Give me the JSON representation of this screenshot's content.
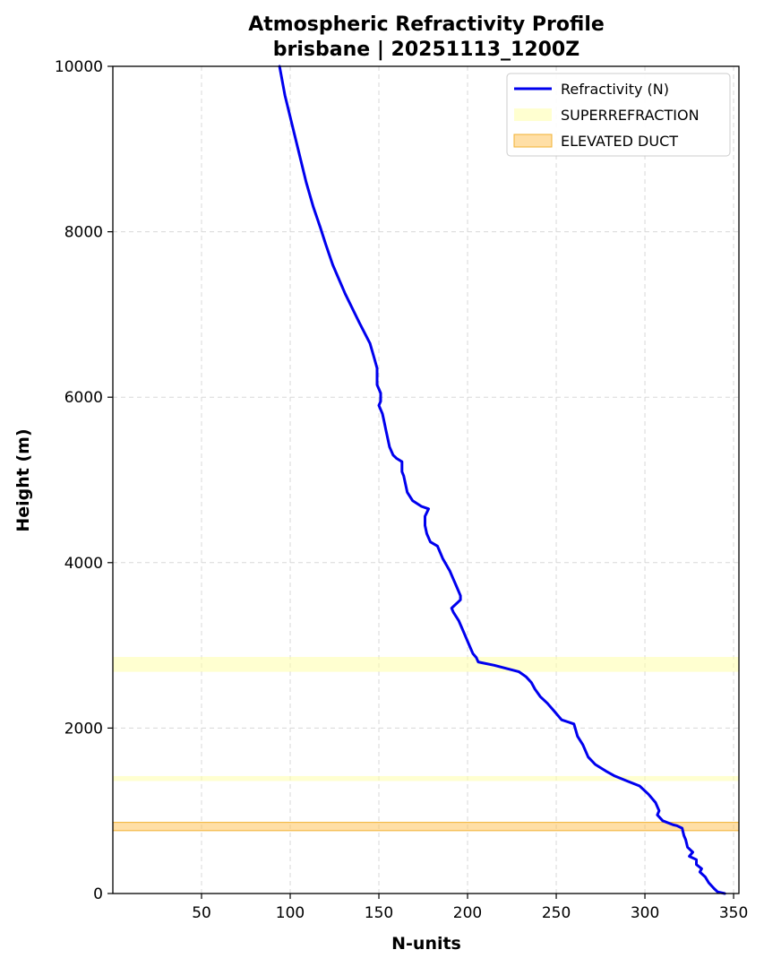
{
  "chart_data": {
    "type": "line",
    "title": "Atmospheric Refractivity Profile",
    "subtitle": "brisbane | 20251113_1200Z",
    "xlabel": "N-units",
    "ylabel": "Height (m)",
    "xlim": [
      0,
      353
    ],
    "ylim": [
      0,
      10000
    ],
    "xticks": [
      50,
      100,
      150,
      200,
      250,
      300,
      350
    ],
    "yticks": [
      0,
      2000,
      4000,
      6000,
      8000,
      10000
    ],
    "grid": true,
    "legend_position": "top-right",
    "series": [
      {
        "name": "Refractivity (N)",
        "color": "#0000ee",
        "points": [
          [
            345,
            0
          ],
          [
            341,
            20
          ],
          [
            339,
            60
          ],
          [
            336,
            130
          ],
          [
            334,
            200
          ],
          [
            331,
            260
          ],
          [
            332,
            300
          ],
          [
            329,
            350
          ],
          [
            329,
            410
          ],
          [
            325,
            450
          ],
          [
            327,
            500
          ],
          [
            324,
            560
          ],
          [
            323,
            650
          ],
          [
            322,
            700
          ],
          [
            321,
            790
          ],
          [
            318,
            820
          ],
          [
            316,
            830
          ],
          [
            310,
            880
          ],
          [
            307,
            950
          ],
          [
            308,
            1000
          ],
          [
            306,
            1100
          ],
          [
            302,
            1200
          ],
          [
            297,
            1300
          ],
          [
            290,
            1360
          ],
          [
            283,
            1420
          ],
          [
            278,
            1480
          ],
          [
            272,
            1560
          ],
          [
            268,
            1650
          ],
          [
            265,
            1800
          ],
          [
            262,
            1900
          ],
          [
            260,
            2050
          ],
          [
            253,
            2100
          ],
          [
            249,
            2200
          ],
          [
            245,
            2300
          ],
          [
            241,
            2380
          ],
          [
            238,
            2470
          ],
          [
            236,
            2550
          ],
          [
            233,
            2620
          ],
          [
            229,
            2680
          ],
          [
            222,
            2720
          ],
          [
            215,
            2760
          ],
          [
            208,
            2790
          ],
          [
            206,
            2800
          ],
          [
            205,
            2850
          ],
          [
            203,
            2900
          ],
          [
            201,
            3000
          ],
          [
            199,
            3100
          ],
          [
            197,
            3200
          ],
          [
            195,
            3300
          ],
          [
            192,
            3400
          ],
          [
            191,
            3450
          ],
          [
            196,
            3550
          ],
          [
            196,
            3600
          ],
          [
            194,
            3700
          ],
          [
            192,
            3800
          ],
          [
            190,
            3900
          ],
          [
            186,
            4050
          ],
          [
            184,
            4150
          ],
          [
            183,
            4200
          ],
          [
            179,
            4250
          ],
          [
            177,
            4350
          ],
          [
            176,
            4450
          ],
          [
            176,
            4560
          ],
          [
            178,
            4650
          ],
          [
            174,
            4680
          ],
          [
            169,
            4750
          ],
          [
            166,
            4850
          ],
          [
            165,
            4950
          ],
          [
            164,
            5050
          ],
          [
            163,
            5100
          ],
          [
            163,
            5150
          ],
          [
            163,
            5220
          ],
          [
            160,
            5260
          ],
          [
            158,
            5300
          ],
          [
            156,
            5400
          ],
          [
            155,
            5500
          ],
          [
            154,
            5600
          ],
          [
            153,
            5700
          ],
          [
            152,
            5800
          ],
          [
            150,
            5900
          ],
          [
            151,
            5950
          ],
          [
            151,
            6050
          ],
          [
            149,
            6150
          ],
          [
            149,
            6200
          ],
          [
            149,
            6350
          ],
          [
            147,
            6500
          ],
          [
            145,
            6650
          ],
          [
            139,
            6900
          ],
          [
            131,
            7250
          ],
          [
            124,
            7600
          ],
          [
            120,
            7850
          ],
          [
            117,
            8050
          ],
          [
            113,
            8300
          ],
          [
            109,
            8600
          ],
          [
            105,
            8950
          ],
          [
            101,
            9300
          ],
          [
            97,
            9650
          ],
          [
            94,
            10000
          ]
        ]
      }
    ],
    "bands": [
      {
        "name": "SUPERREFRACTION",
        "color": "#ffffaa",
        "opacity": 0.55,
        "ranges": [
          [
            2680,
            2860
          ],
          [
            1360,
            1420
          ]
        ]
      },
      {
        "name": "ELEVATED DUCT",
        "color": "#ffc04d",
        "opacity": 0.5,
        "edge": "#f0b030",
        "ranges": [
          [
            760,
            860
          ]
        ]
      }
    ]
  }
}
